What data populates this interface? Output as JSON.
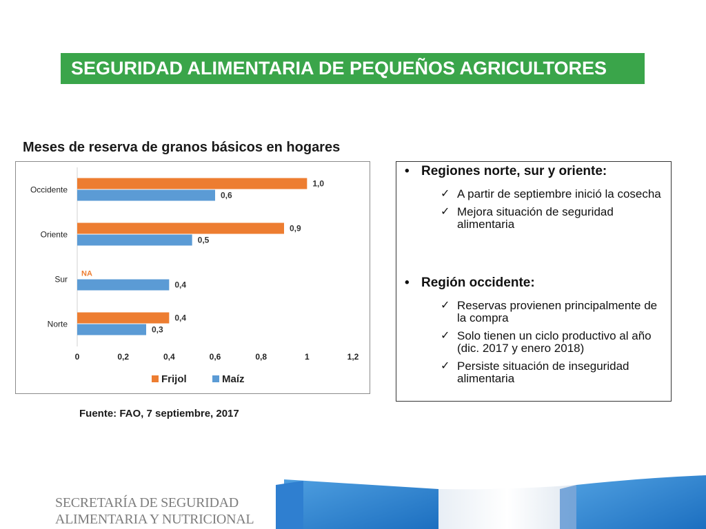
{
  "slide": {
    "title": "SEGURIDAD ALIMENTARIA DE PEQUEÑOS AGRICULTORES",
    "chart_title": "Meses de reserva de granos básicos en hogares",
    "source": "Fuente: FAO, 7 septiembre, 2017",
    "footer_logo_line1": "SECRETARÍA DE SEGURIDAD",
    "footer_logo_line2": "ALIMENTARIA Y NUTRICIONAL"
  },
  "chart_data": {
    "type": "bar",
    "orientation": "horizontal",
    "categories": [
      "Occidente",
      "Oriente",
      "Sur",
      "Norte"
    ],
    "series": [
      {
        "name": "Frijol",
        "color": "#ed7d31",
        "values": [
          1.0,
          0.9,
          null,
          0.4
        ],
        "labels": [
          "1,0",
          "0,9",
          "NA",
          "0,4"
        ]
      },
      {
        "name": "Maíz",
        "color": "#5b9bd5",
        "values": [
          0.6,
          0.5,
          0.4,
          0.3
        ],
        "labels": [
          "0,6",
          "0,5",
          "0,4",
          "0,3"
        ]
      }
    ],
    "xlim": [
      0,
      1.2
    ],
    "xticks": [
      0,
      0.2,
      0.4,
      0.6,
      0.8,
      1,
      1.2
    ],
    "xtick_labels": [
      "0",
      "0,2",
      "0,4",
      "0,6",
      "0,8",
      "1",
      "1,2"
    ],
    "legend_position": "bottom",
    "grid": false
  },
  "info": {
    "section1": {
      "heading": "Regiones norte, sur y oriente:",
      "items": [
        "A partir de septiembre inició la cosecha",
        "Mejora situación de seguridad alimentaria"
      ]
    },
    "section2": {
      "heading": "Región occidente:",
      "items": [
        "Reservas provienen principalmente de la compra",
        "Solo tienen un ciclo productivo al año (dic. 2017 y enero 2018)",
        "Persiste situación de inseguridad alimentaria"
      ]
    }
  }
}
